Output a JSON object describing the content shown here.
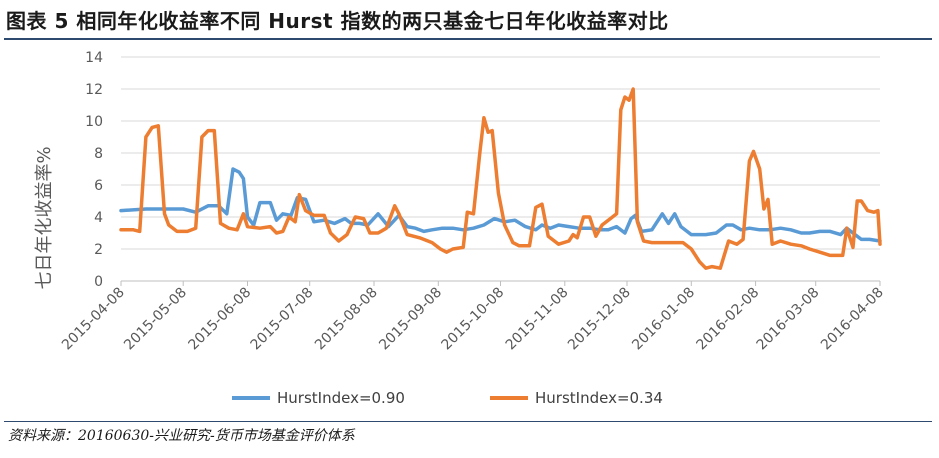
{
  "figure": {
    "title": "图表 5    相同年化收益率不同 Hurst 指数的两只基金七日年化收益率对比",
    "source": "资料来源：20160630-兴业研究-货币市场基金评价体系"
  },
  "colors": {
    "series_blue": "#5b9bd5",
    "series_orange": "#ed7d31",
    "grid": "#d9d9d9",
    "axis_text": "#595959",
    "rule": "#2e4a6e"
  },
  "chart_data": {
    "type": "line",
    "title": "",
    "xlabel": "",
    "ylabel": "七日年化收益率%",
    "ylim": [
      0,
      14
    ],
    "yticks": [
      0,
      2,
      4,
      6,
      8,
      10,
      12,
      14
    ],
    "xlim": [
      "2015-04-08",
      "2016-04-08"
    ],
    "xticks": [
      "2015-04-08",
      "2015-05-08",
      "2015-06-08",
      "2015-07-08",
      "2015-08-08",
      "2015-09-08",
      "2015-10-08",
      "2015-11-08",
      "2015-12-08",
      "2016-01-08",
      "2016-02-08",
      "2016-03-08",
      "2016-04-08"
    ],
    "grid": "horizontal",
    "legend_position": "bottom",
    "series": [
      {
        "name": "HurstIndex=0.90",
        "color": "#5b9bd5",
        "points": [
          [
            "2015-04-08",
            4.4
          ],
          [
            "2015-04-20",
            4.5
          ],
          [
            "2015-05-01",
            4.5
          ],
          [
            "2015-05-08",
            4.5
          ],
          [
            "2015-05-14",
            4.3
          ],
          [
            "2015-05-20",
            4.7
          ],
          [
            "2015-05-25",
            4.7
          ],
          [
            "2015-05-29",
            4.2
          ],
          [
            "2015-06-01",
            7.0
          ],
          [
            "2015-06-04",
            6.8
          ],
          [
            "2015-06-06",
            6.4
          ],
          [
            "2015-06-08",
            4.0
          ],
          [
            "2015-06-11",
            3.5
          ],
          [
            "2015-06-14",
            4.9
          ],
          [
            "2015-06-19",
            4.9
          ],
          [
            "2015-06-22",
            3.8
          ],
          [
            "2015-06-25",
            4.2
          ],
          [
            "2015-06-29",
            4.1
          ],
          [
            "2015-07-02",
            5.2
          ],
          [
            "2015-07-06",
            5.1
          ],
          [
            "2015-07-10",
            3.7
          ],
          [
            "2015-07-15",
            3.8
          ],
          [
            "2015-07-20",
            3.6
          ],
          [
            "2015-07-25",
            3.9
          ],
          [
            "2015-07-28",
            3.6
          ],
          [
            "2015-08-01",
            3.6
          ],
          [
            "2015-08-05",
            3.5
          ],
          [
            "2015-08-10",
            4.2
          ],
          [
            "2015-08-15",
            3.4
          ],
          [
            "2015-08-20",
            4.1
          ],
          [
            "2015-08-24",
            3.4
          ],
          [
            "2015-08-28",
            3.3
          ],
          [
            "2015-09-01",
            3.1
          ],
          [
            "2015-09-05",
            3.2
          ],
          [
            "2015-09-10",
            3.3
          ],
          [
            "2015-09-15",
            3.3
          ],
          [
            "2015-09-20",
            3.2
          ],
          [
            "2015-09-25",
            3.3
          ],
          [
            "2015-09-30",
            3.5
          ],
          [
            "2015-10-05",
            3.9
          ],
          [
            "2015-10-10",
            3.7
          ],
          [
            "2015-10-15",
            3.8
          ],
          [
            "2015-10-20",
            3.4
          ],
          [
            "2015-10-25",
            3.2
          ],
          [
            "2015-10-28",
            3.5
          ],
          [
            "2015-11-01",
            3.3
          ],
          [
            "2015-11-05",
            3.5
          ],
          [
            "2015-11-10",
            3.4
          ],
          [
            "2015-11-15",
            3.3
          ],
          [
            "2015-11-20",
            3.3
          ],
          [
            "2015-11-25",
            3.2
          ],
          [
            "2015-11-29",
            3.2
          ],
          [
            "2015-12-03",
            3.4
          ],
          [
            "2015-12-07",
            3.0
          ],
          [
            "2015-12-10",
            3.9
          ],
          [
            "2015-12-12",
            4.1
          ],
          [
            "2015-12-15",
            3.1
          ],
          [
            "2015-12-20",
            3.2
          ],
          [
            "2015-12-25",
            4.2
          ],
          [
            "2015-12-28",
            3.6
          ],
          [
            "2015-12-31",
            4.2
          ],
          [
            "2016-01-03",
            3.4
          ],
          [
            "2016-01-08",
            2.9
          ],
          [
            "2016-01-15",
            2.9
          ],
          [
            "2016-01-20",
            3.0
          ],
          [
            "2016-01-25",
            3.5
          ],
          [
            "2016-01-28",
            3.5
          ],
          [
            "2016-02-01",
            3.2
          ],
          [
            "2016-02-05",
            3.3
          ],
          [
            "2016-02-10",
            3.2
          ],
          [
            "2016-02-15",
            3.2
          ],
          [
            "2016-02-20",
            3.3
          ],
          [
            "2016-02-25",
            3.2
          ],
          [
            "2016-03-01",
            3.0
          ],
          [
            "2016-03-05",
            3.0
          ],
          [
            "2016-03-10",
            3.1
          ],
          [
            "2016-03-15",
            3.1
          ],
          [
            "2016-03-20",
            2.9
          ],
          [
            "2016-03-23",
            3.3
          ],
          [
            "2016-03-27",
            2.9
          ],
          [
            "2016-03-30",
            2.6
          ],
          [
            "2016-04-03",
            2.6
          ],
          [
            "2016-04-08",
            2.5
          ]
        ]
      },
      {
        "name": "HurstIndex=0.34",
        "color": "#ed7d31",
        "points": [
          [
            "2015-04-08",
            3.2
          ],
          [
            "2015-04-14",
            3.2
          ],
          [
            "2015-04-17",
            3.1
          ],
          [
            "2015-04-20",
            9.0
          ],
          [
            "2015-04-23",
            9.6
          ],
          [
            "2015-04-26",
            9.7
          ],
          [
            "2015-04-29",
            4.2
          ],
          [
            "2015-05-01",
            3.5
          ],
          [
            "2015-05-05",
            3.1
          ],
          [
            "2015-05-10",
            3.1
          ],
          [
            "2015-05-14",
            3.3
          ],
          [
            "2015-05-17",
            9.0
          ],
          [
            "2015-05-20",
            9.4
          ],
          [
            "2015-05-23",
            9.4
          ],
          [
            "2015-05-26",
            3.6
          ],
          [
            "2015-05-30",
            3.3
          ],
          [
            "2015-06-03",
            3.2
          ],
          [
            "2015-06-06",
            4.2
          ],
          [
            "2015-06-08",
            3.4
          ],
          [
            "2015-06-14",
            3.3
          ],
          [
            "2015-06-19",
            3.4
          ],
          [
            "2015-06-22",
            3.0
          ],
          [
            "2015-06-25",
            3.1
          ],
          [
            "2015-06-28",
            4.0
          ],
          [
            "2015-07-01",
            3.7
          ],
          [
            "2015-07-03",
            5.4
          ],
          [
            "2015-07-06",
            4.4
          ],
          [
            "2015-07-10",
            4.1
          ],
          [
            "2015-07-15",
            4.1
          ],
          [
            "2015-07-18",
            3.0
          ],
          [
            "2015-07-22",
            2.5
          ],
          [
            "2015-07-26",
            2.9
          ],
          [
            "2015-07-30",
            4.0
          ],
          [
            "2015-08-03",
            3.9
          ],
          [
            "2015-08-06",
            3.0
          ],
          [
            "2015-08-10",
            3.0
          ],
          [
            "2015-08-14",
            3.3
          ],
          [
            "2015-08-18",
            4.7
          ],
          [
            "2015-08-20",
            4.2
          ],
          [
            "2015-08-24",
            2.9
          ],
          [
            "2015-08-30",
            2.7
          ],
          [
            "2015-09-05",
            2.4
          ],
          [
            "2015-09-09",
            2.0
          ],
          [
            "2015-09-12",
            1.8
          ],
          [
            "2015-09-15",
            2.0
          ],
          [
            "2015-09-20",
            2.1
          ],
          [
            "2015-09-22",
            4.3
          ],
          [
            "2015-09-25",
            4.2
          ],
          [
            "2015-09-28",
            8.0
          ],
          [
            "2015-09-30",
            10.2
          ],
          [
            "2015-10-02",
            9.3
          ],
          [
            "2015-10-04",
            9.4
          ],
          [
            "2015-10-07",
            5.5
          ],
          [
            "2015-10-10",
            3.5
          ],
          [
            "2015-10-14",
            2.4
          ],
          [
            "2015-10-17",
            2.2
          ],
          [
            "2015-10-22",
            2.2
          ],
          [
            "2015-10-25",
            4.6
          ],
          [
            "2015-10-28",
            4.8
          ],
          [
            "2015-10-31",
            2.8
          ],
          [
            "2015-11-05",
            2.3
          ],
          [
            "2015-11-10",
            2.5
          ],
          [
            "2015-11-12",
            2.9
          ],
          [
            "2015-11-14",
            2.7
          ],
          [
            "2015-11-17",
            4.0
          ],
          [
            "2015-11-20",
            4.0
          ],
          [
            "2015-11-23",
            2.8
          ],
          [
            "2015-11-26",
            3.5
          ],
          [
            "2015-11-30",
            3.9
          ],
          [
            "2015-12-03",
            4.2
          ],
          [
            "2015-12-05",
            10.7
          ],
          [
            "2015-12-07",
            11.5
          ],
          [
            "2015-12-09",
            11.3
          ],
          [
            "2015-12-11",
            12.0
          ],
          [
            "2015-12-13",
            3.7
          ],
          [
            "2015-12-16",
            2.5
          ],
          [
            "2015-12-20",
            2.4
          ],
          [
            "2015-12-28",
            2.4
          ],
          [
            "2016-01-04",
            2.4
          ],
          [
            "2016-01-08",
            2.0
          ],
          [
            "2016-01-12",
            1.2
          ],
          [
            "2016-01-15",
            0.8
          ],
          [
            "2016-01-18",
            0.9
          ],
          [
            "2016-01-22",
            0.8
          ],
          [
            "2016-01-26",
            2.5
          ],
          [
            "2016-01-30",
            2.3
          ],
          [
            "2016-02-02",
            2.6
          ],
          [
            "2016-02-05",
            7.5
          ],
          [
            "2016-02-07",
            8.1
          ],
          [
            "2016-02-10",
            7.0
          ],
          [
            "2016-02-12",
            4.5
          ],
          [
            "2016-02-14",
            5.1
          ],
          [
            "2016-02-16",
            2.3
          ],
          [
            "2016-02-20",
            2.5
          ],
          [
            "2016-02-25",
            2.3
          ],
          [
            "2016-03-01",
            2.2
          ],
          [
            "2016-03-05",
            2.0
          ],
          [
            "2016-03-10",
            1.8
          ],
          [
            "2016-03-15",
            1.6
          ],
          [
            "2016-03-18",
            1.6
          ],
          [
            "2016-03-21",
            1.6
          ],
          [
            "2016-03-23",
            3.3
          ],
          [
            "2016-03-26",
            2.1
          ],
          [
            "2016-03-28",
            5.0
          ],
          [
            "2016-03-30",
            5.0
          ],
          [
            "2016-04-02",
            4.4
          ],
          [
            "2016-04-05",
            4.3
          ],
          [
            "2016-04-07",
            4.4
          ],
          [
            "2016-04-08",
            2.3
          ]
        ]
      }
    ]
  }
}
